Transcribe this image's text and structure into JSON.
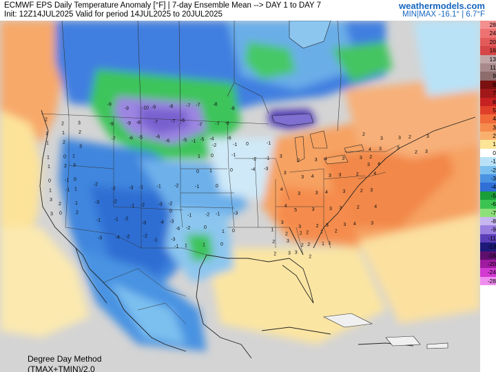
{
  "header": {
    "title": "ECMWF EPS Daily Temperature Anomaly [°F] | 7-day Ensemble Mean --> DAY 1 to DAY 7",
    "subtitle": "Init: 12Z14JUL2025 Valid for period 14JUL2025 to 20JUL2025",
    "brand": "weathermodels.com",
    "minmax": "MIN|MAX -16.1° | 6.7°F"
  },
  "method": {
    "line1": "Degree Day Method",
    "line2": "(TMAX+TMIN)/2.0"
  },
  "legend": [
    {
      "label": "28",
      "color": "#f48f8f"
    },
    {
      "label": "24",
      "color": "#ee7272"
    },
    {
      "label": "20",
      "color": "#e35a5a"
    },
    {
      "label": "16",
      "color": "#d54646"
    },
    {
      "label": "13",
      "color": "#c0a6a6"
    },
    {
      "label": "11",
      "color": "#a88a8a"
    },
    {
      "label": "9",
      "color": "#8d6c6c"
    },
    {
      "label": "8",
      "color": "#7a1010"
    },
    {
      "label": "7",
      "color": "#a01818"
    },
    {
      "label": "6",
      "color": "#c62222"
    },
    {
      "label": "5",
      "color": "#e0402a"
    },
    {
      "label": "4",
      "color": "#f06a3a"
    },
    {
      "label": "3",
      "color": "#f58c4e"
    },
    {
      "label": "2",
      "color": "#f9b06e"
    },
    {
      "label": "1",
      "color": "#fce596"
    },
    {
      "label": "0",
      "color": "#ffffff"
    },
    {
      "label": "-1",
      "color": "#b9e2f7"
    },
    {
      "label": "-2",
      "color": "#7cc0ef"
    },
    {
      "label": "-3",
      "color": "#4a93e2"
    },
    {
      "label": "-4",
      "color": "#2f6fd6"
    },
    {
      "label": "-5",
      "color": "#1a9e3a"
    },
    {
      "label": "-6",
      "color": "#3cc452"
    },
    {
      "label": "-7",
      "color": "#8ee07a"
    },
    {
      "label": "-8",
      "color": "#c6b6f0"
    },
    {
      "label": "-9",
      "color": "#9a7ee0"
    },
    {
      "label": "-11",
      "color": "#5a3eb8"
    },
    {
      "label": "-13",
      "color": "#1d1a7a"
    },
    {
      "label": "-16",
      "color": "#5e0f6e"
    },
    {
      "label": "-20",
      "color": "#a01aa0"
    },
    {
      "label": "-24",
      "color": "#d23ad2"
    },
    {
      "label": "-28",
      "color": "#f08ef0"
    }
  ],
  "anomaly_labels": {
    "northern_plains": [
      "-9",
      "-9",
      "-10",
      "-9",
      "-8",
      "-7",
      "-7",
      "-8",
      "-8",
      "-9",
      "-9",
      "-8",
      "-7",
      "-7",
      "-6",
      "-7",
      "-7",
      "-8",
      "-7",
      "-6",
      "-5",
      "-6",
      "-6",
      "-5",
      "-5",
      "-4",
      "-6"
    ],
    "west": [
      "2",
      "2",
      "3",
      "1",
      "1",
      "2",
      "1",
      "2",
      "3",
      "1",
      "0",
      "1",
      "1",
      "2",
      "3",
      "0",
      "-1",
      "0",
      "1",
      "-1",
      "1",
      "3",
      "2",
      "1",
      "3",
      "0",
      "2"
    ],
    "rockies": [
      "-2",
      "-2",
      "-3",
      "-1",
      "-1",
      "-2",
      "-3",
      "-2",
      "-1",
      "-2",
      "-3",
      "-2",
      "-1",
      "-1",
      "-2",
      "-3",
      "-4",
      "-3",
      "-3",
      "-4",
      "-2",
      "-2",
      "-1",
      "-3"
    ],
    "midwest": [
      "-1",
      "-2",
      "-1",
      "0",
      "-1",
      "1",
      "0",
      "-1",
      "-2",
      "-1",
      "0",
      "1",
      "0",
      "-4",
      "-3",
      "-1",
      "0"
    ],
    "southern_plains": [
      "0",
      "-1",
      "-2",
      "-1",
      "-3",
      "-6",
      "-2",
      "0",
      "1",
      "0",
      "-1",
      "1",
      "1",
      "0"
    ],
    "east": [
      "3",
      "2",
      "3",
      "4",
      "3",
      "3",
      "2",
      "3",
      "3",
      "4",
      "3",
      "3",
      "2",
      "4",
      "4",
      "3",
      "3",
      "4",
      "3",
      "2",
      "3",
      "4",
      "5",
      "3",
      "3",
      "3",
      "2",
      "4",
      "3",
      "3",
      "2",
      "3",
      "3",
      "4",
      "3"
    ],
    "southeast": [
      "1",
      "2",
      "2",
      "2",
      "1",
      "2",
      "2",
      "3",
      "2",
      "2",
      "1",
      "1",
      "2",
      "3",
      "3",
      "2"
    ],
    "northeast_canada": [
      "2",
      "3",
      "3",
      "2",
      "3",
      "4",
      "3",
      "3",
      "2",
      "3",
      "3",
      "4"
    ]
  }
}
